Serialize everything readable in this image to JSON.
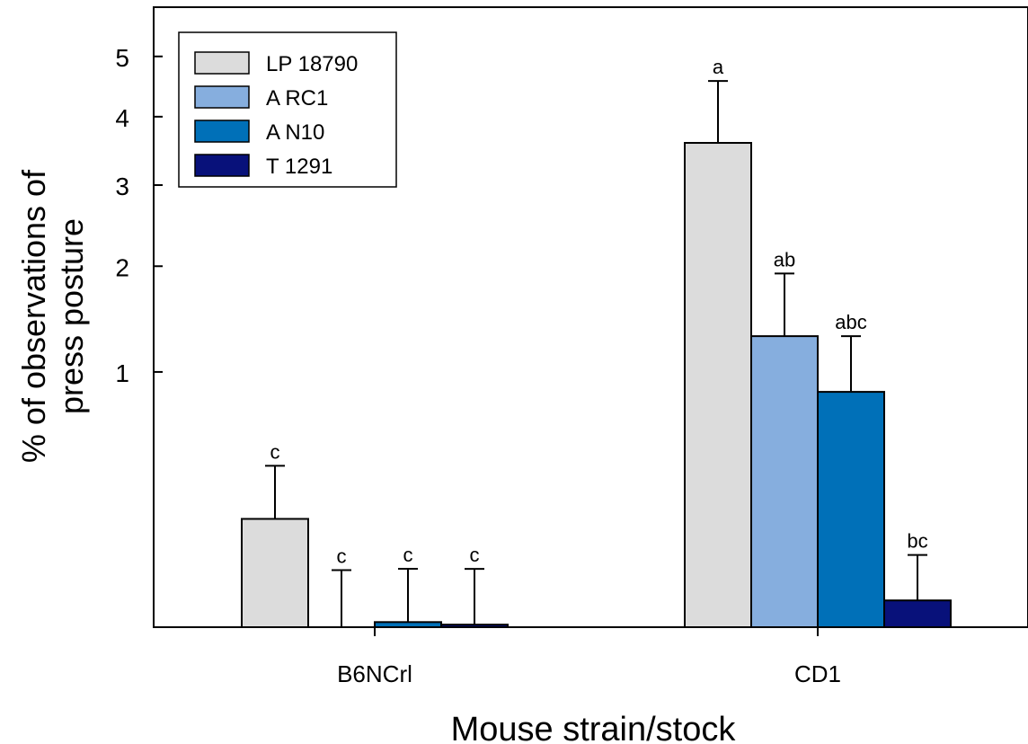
{
  "chart_data": {
    "type": "bar",
    "xlabel": "Mouse strain/stock",
    "ylabel_lines": [
      "% of observations of",
      "press posture"
    ],
    "y_scale": "sqrt",
    "ylim": [
      0,
      5.9
    ],
    "y_ticks": [
      1,
      2,
      3,
      4,
      5
    ],
    "grid": false,
    "legend_position": "top-left",
    "categories": [
      "B6NCrl",
      "CD1"
    ],
    "series": [
      {
        "name": "LP 18790",
        "color": "#dcdcdc",
        "values": [
          0.18,
          3.6
        ],
        "error": [
          0.22,
          0.98
        ],
        "letters": [
          "c",
          "a"
        ]
      },
      {
        "name": "A RC1",
        "color": "#86aede",
        "values": [
          0.0,
          1.3
        ],
        "error": [
          0.05,
          0.62
        ],
        "letters": [
          "c",
          "ab"
        ]
      },
      {
        "name": "A N10",
        "color": "#0070b8",
        "values": [
          0.0004,
          0.85
        ],
        "error": [
          0.052,
          0.45
        ],
        "letters": [
          "c",
          "abc"
        ]
      },
      {
        "name": "T 1291",
        "color": "#08117a",
        "values": [
          0.0001,
          0.011
        ],
        "error": [
          0.052,
          0.069
        ],
        "letters": [
          "c",
          "bc"
        ]
      }
    ]
  }
}
